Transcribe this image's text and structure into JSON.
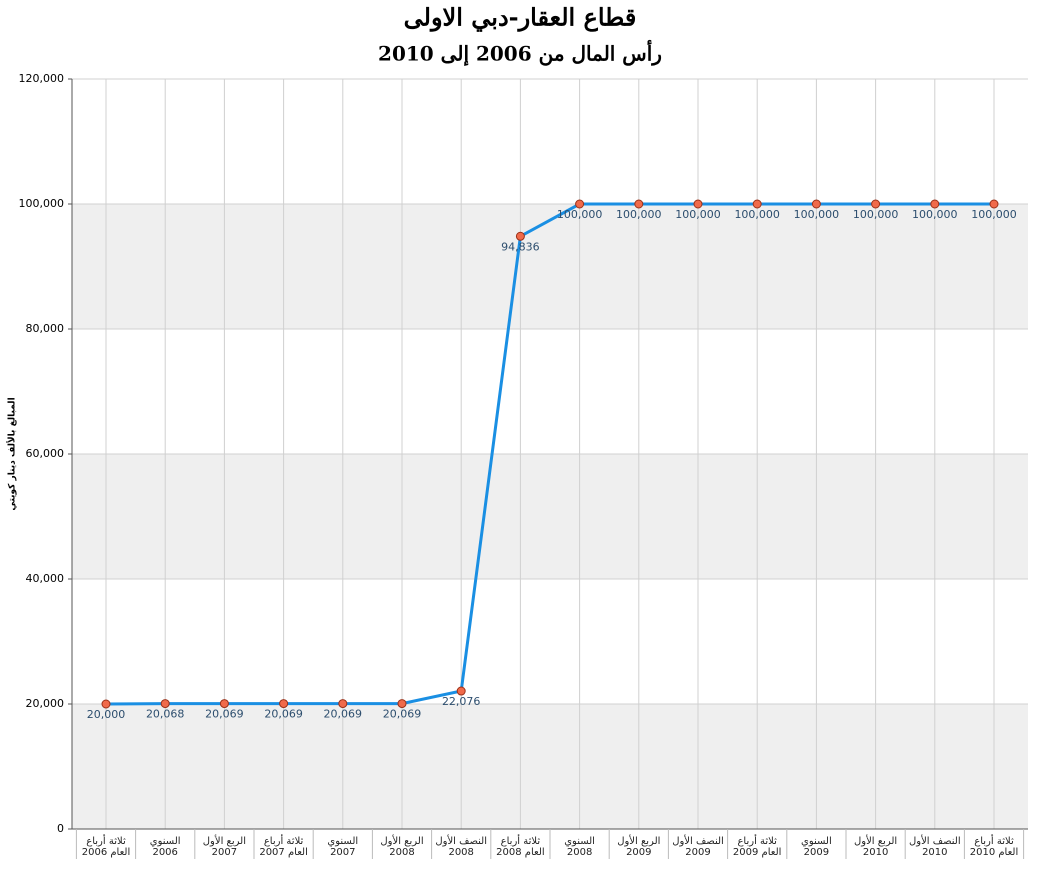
{
  "chart_data": {
    "type": "line",
    "title": "قطاع العقار-دبي الاولى",
    "subtitle": "رأس المال من 2006 إلى 2010",
    "y_label": "المبالغ بالألف دينار كويتي",
    "categories": [
      "ثلاثة أرباع العام 2006",
      "السنوي 2006",
      "الربع الأول 2007",
      "ثلاثة أرباع العام 2007",
      "السنوي 2007",
      "الربع الأول 2008",
      "النصف الأول 2008",
      "ثلاثة أرباع العام 2008",
      "السنوي 2008",
      "الربع الأول 2009",
      "النصف الأول 2009",
      "ثلاثة أرباع العام 2009",
      "السنوي 2009",
      "الربع الأول 2010",
      "النصف الأول 2010",
      "ثلاثة أرباع العام 2010"
    ],
    "values": [
      20000,
      20068,
      20069,
      20069,
      20069,
      20069,
      22076,
      94836,
      100000,
      100000,
      100000,
      100000,
      100000,
      100000,
      100000,
      100000
    ],
    "value_labels": [
      "20,000",
      "20,068",
      "20,069",
      "20,069",
      "20,069",
      "20,069",
      "22,076",
      "94,836",
      "100,000",
      "100,000",
      "100,000",
      "100,000",
      "100,000",
      "100,000",
      "100,000",
      "100,000"
    ],
    "color": "#1a8fe3",
    "marker_color": "#f06a4a",
    "ylim": [
      0,
      120000
    ],
    "yticks": [
      0,
      {
        "value": 20000,
        "label": "20,000"
      },
      {
        "value": 40000,
        "label": "40,000"
      },
      {
        "value": 60000,
        "label": "60,000"
      },
      {
        "value": 80000,
        "label": "80,000"
      },
      {
        "value": 100000,
        "label": "100,000"
      },
      {
        "value": 120000,
        "label": "120,000"
      }
    ],
    "grid": true
  }
}
